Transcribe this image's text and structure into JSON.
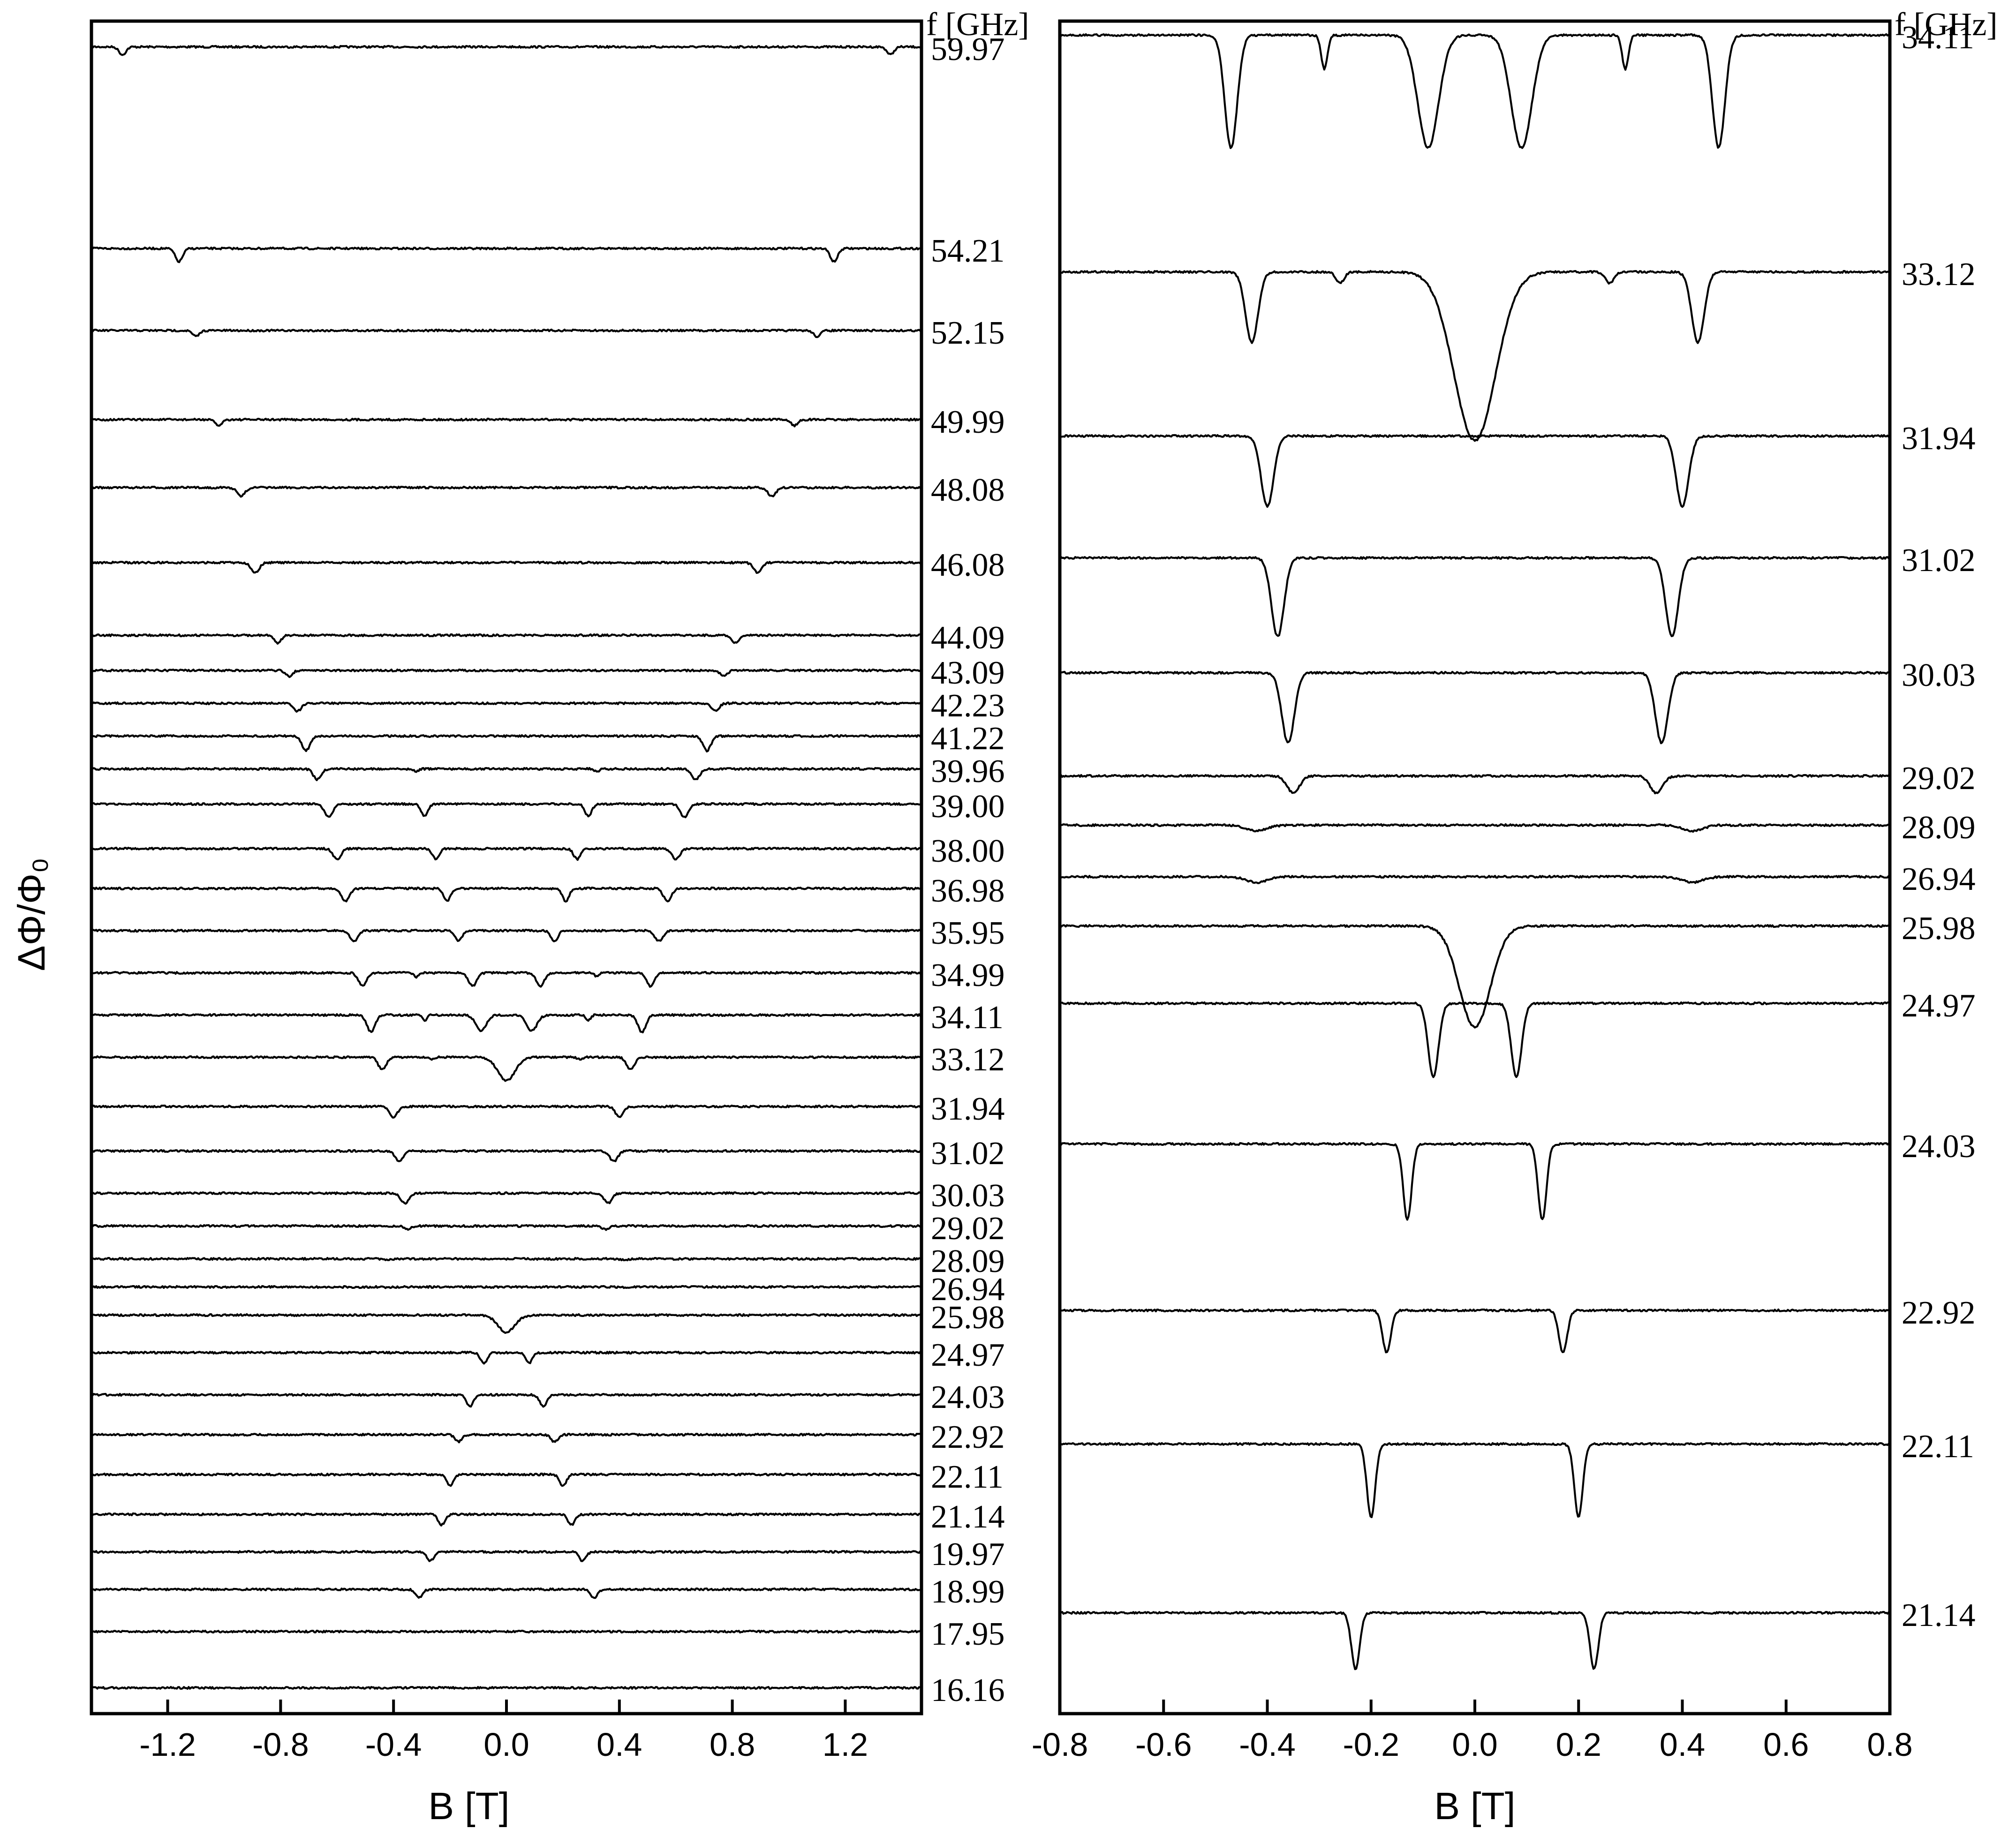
{
  "chart_data": [
    {
      "type": "line",
      "panel": "left",
      "xlabel": "B [T]",
      "ylabel": "ΔΦ/Φ₀",
      "unit_header": "f [GHz]",
      "xlim": [
        -1.47,
        1.47
      ],
      "xticks": [
        "-1.2",
        "-0.8",
        "-0.4",
        "0.0",
        "0.4",
        "0.8",
        "1.2"
      ],
      "grid": false,
      "legend": "none",
      "series": [
        {
          "frequency": "59.97",
          "resonances": [
            {
              "B": 1.36,
              "depth": 1.2,
              "width": 0.012
            },
            {
              "B": 0.0,
              "depth": 0,
              "width": 0.01
            }
          ]
        },
        {
          "frequency": "54.21",
          "resonances": [
            {
              "B": 1.16,
              "depth": 2.0,
              "width": 0.013
            }
          ]
        },
        {
          "frequency": "52.15",
          "resonances": [
            {
              "B": 1.1,
              "depth": 0.9,
              "width": 0.012
            }
          ]
        },
        {
          "frequency": "49.99",
          "resonances": [
            {
              "B": 1.02,
              "depth": 0.9,
              "width": 0.012
            }
          ]
        },
        {
          "frequency": "48.08",
          "resonances": [
            {
              "B": 0.94,
              "depth": 1.3,
              "width": 0.014
            }
          ]
        },
        {
          "frequency": "46.08",
          "resonances": [
            {
              "B": 0.89,
              "depth": 1.5,
              "width": 0.014
            }
          ]
        },
        {
          "frequency": "44.09",
          "resonances": [
            {
              "B": 0.81,
              "depth": 1.2,
              "width": 0.012
            }
          ]
        },
        {
          "frequency": "43.09",
          "resonances": [
            {
              "B": 0.77,
              "depth": 0.9,
              "width": 0.012
            }
          ]
        },
        {
          "frequency": "42.23",
          "resonances": [
            {
              "B": 0.74,
              "depth": 1.2,
              "width": 0.013
            }
          ]
        },
        {
          "frequency": "41.22",
          "resonances": [
            {
              "B": 0.71,
              "depth": 2.2,
              "width": 0.014
            }
          ]
        },
        {
          "frequency": "39.96",
          "resonances": [
            {
              "B": 0.67,
              "depth": 1.6,
              "width": 0.014
            },
            {
              "B": 0.32,
              "depth": 0.4,
              "width": 0.008
            }
          ]
        },
        {
          "frequency": "39.00",
          "resonances": [
            {
              "B": 0.63,
              "depth": 2.0,
              "width": 0.014
            },
            {
              "B": 0.29,
              "depth": 1.8,
              "width": 0.012
            }
          ]
        },
        {
          "frequency": "38.00",
          "resonances": [
            {
              "B": 0.6,
              "depth": 1.6,
              "width": 0.014
            },
            {
              "B": 0.25,
              "depth": 1.6,
              "width": 0.012
            }
          ]
        },
        {
          "frequency": "36.98",
          "resonances": [
            {
              "B": 0.57,
              "depth": 1.9,
              "width": 0.014
            },
            {
              "B": 0.21,
              "depth": 1.9,
              "width": 0.012
            }
          ]
        },
        {
          "frequency": "35.95",
          "resonances": [
            {
              "B": 0.54,
              "depth": 1.6,
              "width": 0.014
            },
            {
              "B": 0.17,
              "depth": 1.6,
              "width": 0.012
            }
          ]
        },
        {
          "frequency": "34.99",
          "resonances": [
            {
              "B": 0.51,
              "depth": 2.0,
              "width": 0.014
            },
            {
              "B": 0.12,
              "depth": 2.0,
              "width": 0.014
            },
            {
              "B": 0.32,
              "depth": 0.6,
              "width": 0.008
            }
          ]
        },
        {
          "frequency": "34.11",
          "resonances": [
            {
              "B": 0.48,
              "depth": 2.6,
              "width": 0.014
            },
            {
              "B": 0.09,
              "depth": 2.4,
              "width": 0.018
            },
            {
              "B": 0.29,
              "depth": 0.8,
              "width": 0.008
            }
          ]
        },
        {
          "frequency": "33.12",
          "resonances": [
            {
              "B": 0.44,
              "depth": 1.9,
              "width": 0.014
            },
            {
              "B": 0.0,
              "depth": 1.8,
              "width": 0.03
            },
            {
              "B": 0.26,
              "depth": 0.3,
              "width": 0.008
            }
          ]
        },
        {
          "frequency": "31.94",
          "resonances": [
            {
              "B": 0.4,
              "depth": 1.6,
              "width": 0.014
            }
          ]
        },
        {
          "frequency": "31.02",
          "resonances": [
            {
              "B": 0.38,
              "depth": 1.6,
              "width": 0.014
            }
          ]
        },
        {
          "frequency": "30.03",
          "resonances": [
            {
              "B": 0.36,
              "depth": 1.5,
              "width": 0.014
            }
          ]
        },
        {
          "frequency": "29.02",
          "resonances": [
            {
              "B": 0.35,
              "depth": 0.5,
              "width": 0.012
            }
          ]
        },
        {
          "frequency": "28.09",
          "resonances": [
            {
              "B": 0.42,
              "depth": 0.15,
              "width": 0.015
            }
          ]
        },
        {
          "frequency": "26.94",
          "resonances": [
            {
              "B": 0.42,
              "depth": 0.1,
              "width": 0.015
            }
          ]
        },
        {
          "frequency": "25.98",
          "resonances": [
            {
              "B": 0.0,
              "depth": 1.3,
              "width": 0.03
            }
          ]
        },
        {
          "frequency": "24.97",
          "resonances": [
            {
              "B": 0.08,
              "depth": 1.6,
              "width": 0.012
            }
          ]
        },
        {
          "frequency": "24.03",
          "resonances": [
            {
              "B": 0.13,
              "depth": 1.8,
              "width": 0.012
            }
          ]
        },
        {
          "frequency": "22.92",
          "resonances": [
            {
              "B": 0.17,
              "depth": 1.1,
              "width": 0.012
            }
          ]
        },
        {
          "frequency": "22.11",
          "resonances": [
            {
              "B": 0.2,
              "depth": 1.7,
              "width": 0.012
            }
          ]
        },
        {
          "frequency": "21.14",
          "resonances": [
            {
              "B": 0.23,
              "depth": 1.6,
              "width": 0.012
            }
          ]
        },
        {
          "frequency": "19.97",
          "resonances": [
            {
              "B": 0.27,
              "depth": 1.4,
              "width": 0.012
            }
          ]
        },
        {
          "frequency": "18.99",
          "resonances": [
            {
              "B": 0.31,
              "depth": 1.3,
              "width": 0.012
            }
          ]
        },
        {
          "frequency": "17.95",
          "resonances": []
        },
        {
          "frequency": "16.16",
          "resonances": []
        }
      ]
    },
    {
      "type": "line",
      "panel": "right",
      "xlabel": "B [T]",
      "unit_header": "f [GHz]",
      "xlim": [
        -0.8,
        0.8
      ],
      "xticks": [
        "-0.8",
        "-0.6",
        "-0.4",
        "-0.2",
        "0.0",
        "0.2",
        "0.4",
        "0.6",
        "0.8"
      ],
      "grid": false,
      "legend": "none",
      "series": [
        {
          "frequency": "34.11",
          "resonances": [
            {
              "B": 0.47,
              "depth": 4.0,
              "width": 0.012
            },
            {
              "B": 0.09,
              "depth": 4.0,
              "width": 0.02
            },
            {
              "B": 0.29,
              "depth": 1.2,
              "width": 0.006
            }
          ]
        },
        {
          "frequency": "33.12",
          "resonances": [
            {
              "B": 0.43,
              "depth": 2.5,
              "width": 0.012
            },
            {
              "B": 0.0,
              "depth": 3.0,
              "width": 0.04
            },
            {
              "B": 0.26,
              "depth": 0.4,
              "width": 0.008
            }
          ]
        },
        {
          "frequency": "31.94",
          "resonances": [
            {
              "B": 0.4,
              "depth": 2.5,
              "width": 0.012
            }
          ]
        },
        {
          "frequency": "31.02",
          "resonances": [
            {
              "B": 0.38,
              "depth": 2.8,
              "width": 0.012
            }
          ]
        },
        {
          "frequency": "30.03",
          "resonances": [
            {
              "B": 0.36,
              "depth": 2.5,
              "width": 0.012
            }
          ]
        },
        {
          "frequency": "29.02",
          "resonances": [
            {
              "B": 0.35,
              "depth": 0.6,
              "width": 0.012
            }
          ]
        },
        {
          "frequency": "28.09",
          "resonances": [
            {
              "B": 0.42,
              "depth": 0.2,
              "width": 0.02
            }
          ]
        },
        {
          "frequency": "26.94",
          "resonances": [
            {
              "B": 0.42,
              "depth": 0.2,
              "width": 0.02
            }
          ]
        },
        {
          "frequency": "25.98",
          "resonances": [
            {
              "B": 0.0,
              "depth": 1.8,
              "width": 0.03
            }
          ]
        },
        {
          "frequency": "24.97",
          "resonances": [
            {
              "B": 0.08,
              "depth": 2.6,
              "width": 0.01
            }
          ]
        },
        {
          "frequency": "24.03",
          "resonances": [
            {
              "B": 0.13,
              "depth": 2.7,
              "width": 0.008
            }
          ]
        },
        {
          "frequency": "22.92",
          "resonances": [
            {
              "B": 0.17,
              "depth": 1.5,
              "width": 0.008
            }
          ]
        },
        {
          "frequency": "22.11",
          "resonances": [
            {
              "B": 0.2,
              "depth": 2.6,
              "width": 0.008
            }
          ]
        },
        {
          "frequency": "21.14",
          "resonances": [
            {
              "B": 0.23,
              "depth": 2.0,
              "width": 0.008
            }
          ]
        }
      ]
    }
  ]
}
